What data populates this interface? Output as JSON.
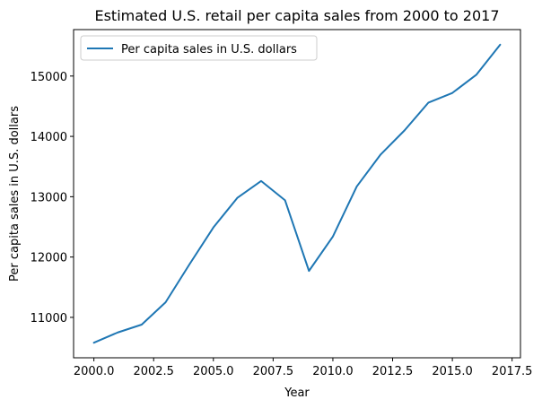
{
  "chart_data": {
    "type": "line",
    "title": "Estimated U.S. retail per capita sales from 2000 to 2017",
    "xlabel": "Year",
    "ylabel": "Per capita sales in U.S. dollars",
    "x": [
      2000,
      2001,
      2002,
      2003,
      2004,
      2005,
      2006,
      2007,
      2008,
      2009,
      2010,
      2011,
      2012,
      2013,
      2014,
      2015,
      2016,
      2017
    ],
    "series": [
      {
        "name": "Per capita sales in U.S. dollars",
        "color": "#1f77b4",
        "values": [
          10580,
          10750,
          10880,
          11250,
          11880,
          12490,
          12980,
          13260,
          12940,
          11770,
          12340,
          13170,
          13700,
          14100,
          14560,
          14720,
          15020,
          15520
        ]
      }
    ],
    "xlim": [
      1999.15,
      2017.85
    ],
    "ylim": [
      10330,
      15770
    ],
    "xticks": [
      2000.0,
      2002.5,
      2005.0,
      2007.5,
      2010.0,
      2012.5,
      2015.0,
      2017.5
    ],
    "xtick_labels": [
      "2000.0",
      "2002.5",
      "2005.0",
      "2007.5",
      "2010.0",
      "2012.5",
      "2015.0",
      "2017.5"
    ],
    "yticks": [
      11000,
      12000,
      13000,
      14000,
      15000
    ],
    "ytick_labels": [
      "11000",
      "12000",
      "13000",
      "14000",
      "15000"
    ],
    "grid": false,
    "legend": "top-left"
  }
}
